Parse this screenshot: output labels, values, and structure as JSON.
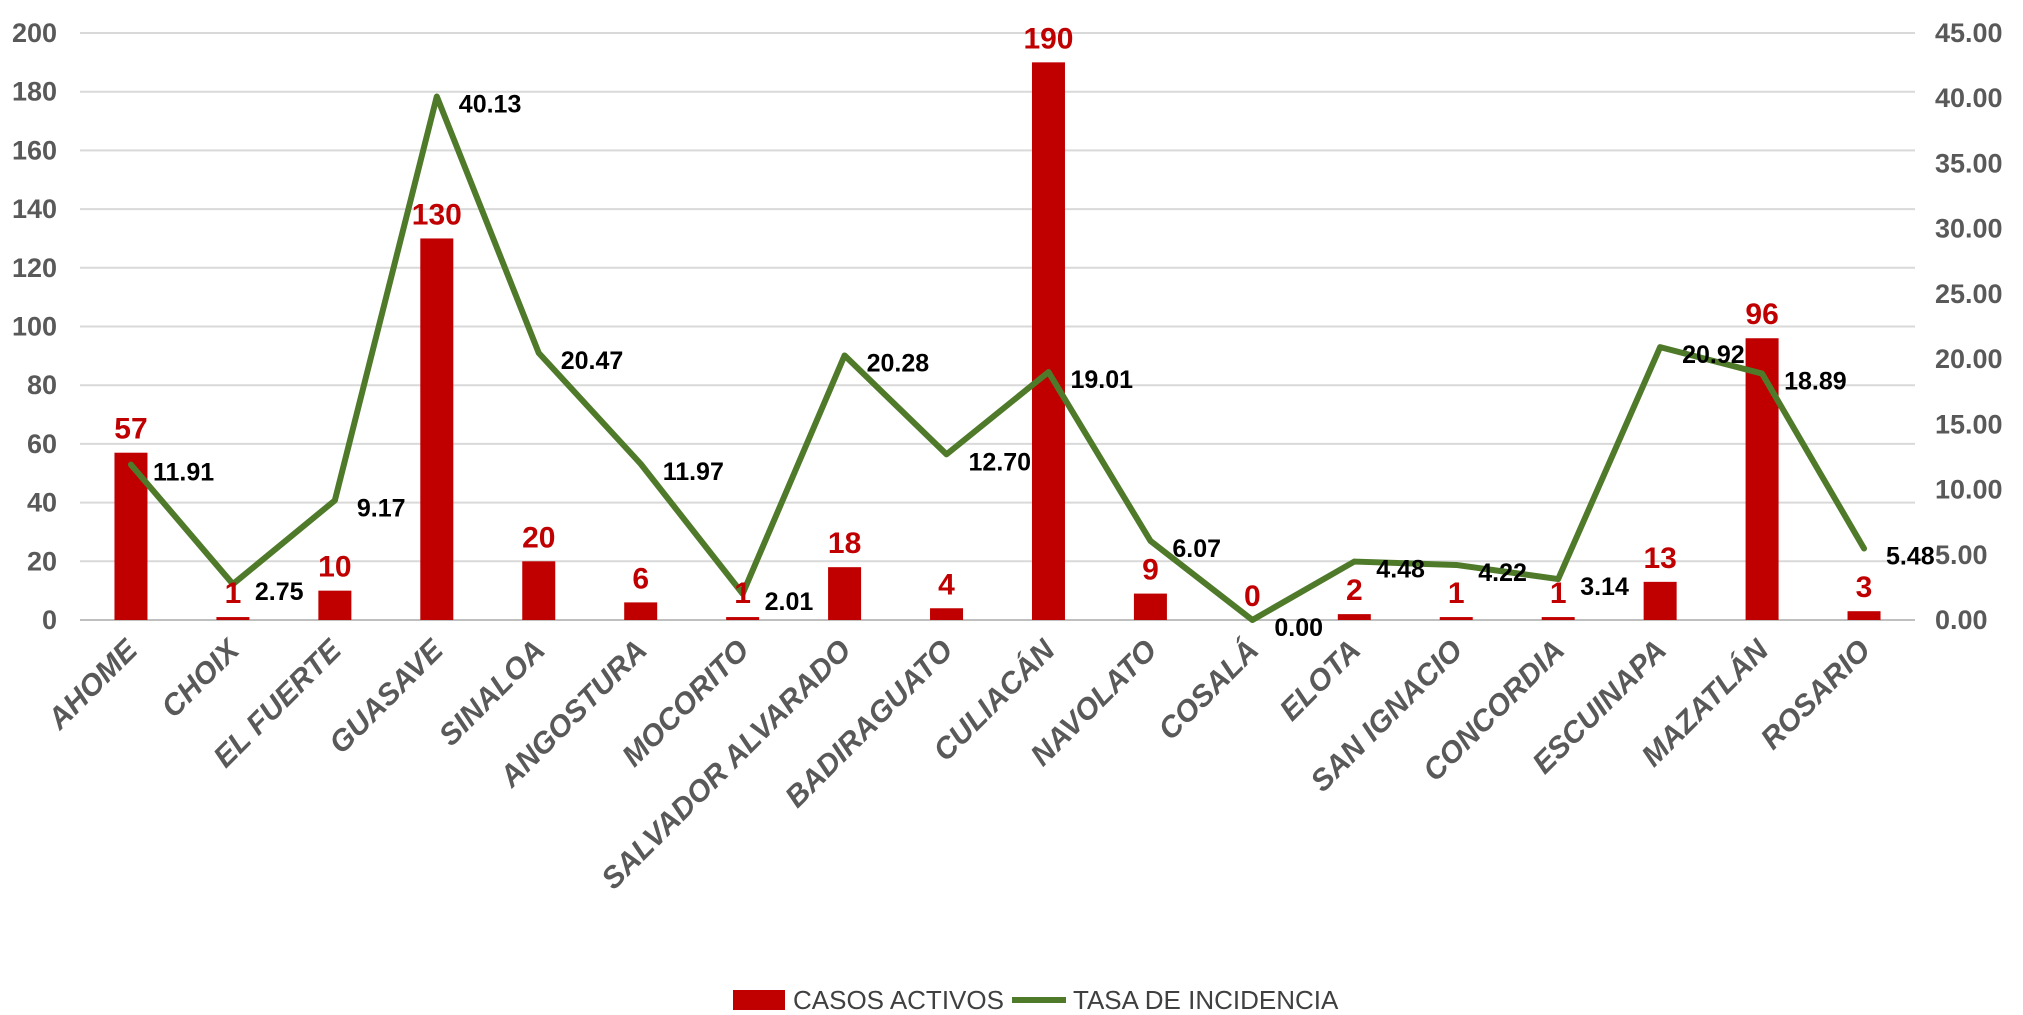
{
  "chart_data": {
    "type": "bar",
    "categories": [
      "AHOME",
      "CHOIX",
      "EL FUERTE",
      "GUASAVE",
      "SINALOA",
      "ANGOSTURA",
      "MOCORITO",
      "SALVADOR ALVARADO",
      "BADIRAGUATO",
      "CULIACÁN",
      "NAVOLATO",
      "COSALÁ",
      "ELOTA",
      "SAN IGNACIO",
      "CONCORDIA",
      "ESCUINAPA",
      "MAZATLÁN",
      "ROSARIO"
    ],
    "series": [
      {
        "name": "CASOS ACTIVOS",
        "type": "bar",
        "axis": "left",
        "color": "#C00000",
        "values": [
          57,
          1,
          10,
          130,
          20,
          6,
          1,
          18,
          4,
          190,
          9,
          0,
          2,
          1,
          1,
          13,
          96,
          3
        ],
        "labels": [
          "57",
          "1",
          "10",
          "130",
          "20",
          "6",
          "1",
          "18",
          "4",
          "190",
          "9",
          "0",
          "2",
          "1",
          "1",
          "13",
          "96",
          "3"
        ]
      },
      {
        "name": "TASA DE INCIDENCIA",
        "type": "line",
        "axis": "right",
        "color": "#4F7A2A",
        "values": [
          11.91,
          2.75,
          9.17,
          40.13,
          20.47,
          11.97,
          2.01,
          20.28,
          12.7,
          19.01,
          6.07,
          0.0,
          4.48,
          4.22,
          3.14,
          20.92,
          18.89,
          5.48
        ],
        "labels": [
          "11.91",
          "2.75",
          "9.17",
          "40.13",
          "20.47",
          "11.97",
          "2.01",
          "20.28",
          "12.70",
          "19.01",
          "6.07",
          "0.00",
          "4.48",
          "4.22",
          "3.14",
          "20.92",
          "18.89",
          "5.48"
        ]
      }
    ],
    "y_left": {
      "ylim": [
        0,
        200
      ],
      "ticks": [
        "0",
        "20",
        "40",
        "60",
        "80",
        "100",
        "120",
        "140",
        "160",
        "180",
        "200"
      ]
    },
    "y_right": {
      "ylim": [
        0,
        45
      ],
      "ticks": [
        "0.00",
        "5.00",
        "10.00",
        "15.00",
        "20.00",
        "25.00",
        "30.00",
        "35.00",
        "40.00",
        "45.00"
      ]
    },
    "grid": true,
    "legend": "bottom",
    "title": "",
    "xlabel": "",
    "ylabel": ""
  }
}
